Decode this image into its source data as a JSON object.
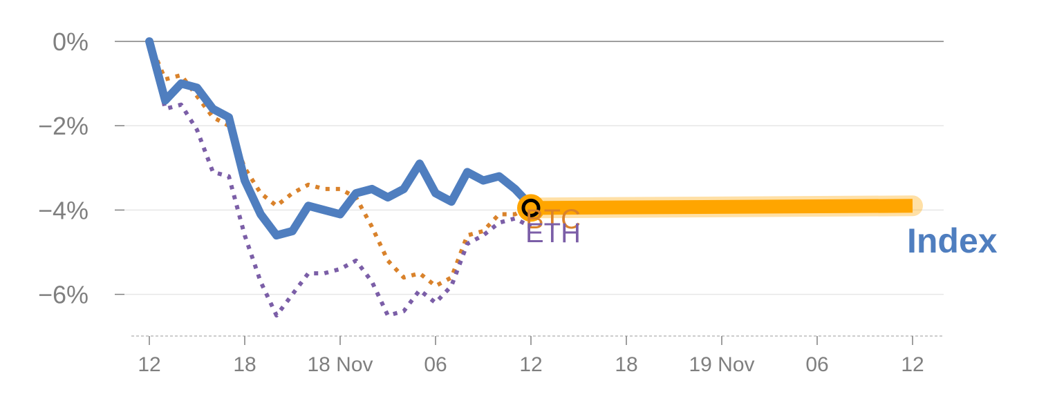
{
  "chart_data": {
    "type": "line",
    "y_unit": "%",
    "ylim": [
      -7,
      0
    ],
    "yticks": [
      0,
      -2,
      -4,
      -6
    ],
    "ytick_labels": [
      "0%",
      "−2%",
      "−4%",
      "−6%"
    ],
    "x_range": [
      0,
      48
    ],
    "xticks": [
      0,
      6,
      12,
      18,
      24,
      30,
      36,
      42,
      48
    ],
    "xtick_labels": [
      "12",
      "18",
      "18 Nov",
      "06",
      "12",
      "18",
      "19 Nov",
      "06",
      "12"
    ],
    "grid": true,
    "legend": "none (direct labels at line ends)",
    "series": [
      {
        "name": "Index",
        "style": "solid",
        "color": "#4f7ebf",
        "x": [
          0,
          1,
          2,
          3,
          4,
          5,
          6,
          7,
          8,
          9,
          10,
          11,
          12,
          13,
          14,
          15,
          16,
          17,
          18,
          19,
          20,
          21,
          22,
          23,
          24
        ],
        "values": [
          0,
          -1.4,
          -1.0,
          -1.1,
          -1.6,
          -1.8,
          -3.3,
          -4.1,
          -4.6,
          -4.5,
          -3.9,
          -4.0,
          -4.1,
          -3.6,
          -3.5,
          -3.7,
          -3.5,
          -2.9,
          -3.6,
          -3.8,
          -3.1,
          -3.3,
          -3.2,
          -3.5,
          -3.9
        ]
      },
      {
        "name": "BTC",
        "style": "dotted",
        "color": "#d9822b",
        "x": [
          0,
          1,
          2,
          3,
          4,
          5,
          6,
          7,
          8,
          9,
          10,
          11,
          12,
          13,
          14,
          15,
          16,
          17,
          18,
          19,
          20,
          21,
          22,
          23,
          24
        ],
        "values": [
          0,
          -0.9,
          -0.8,
          -1.3,
          -1.8,
          -2.0,
          -3.0,
          -3.6,
          -3.9,
          -3.6,
          -3.4,
          -3.5,
          -3.5,
          -3.7,
          -4.4,
          -5.2,
          -5.6,
          -5.5,
          -5.8,
          -5.6,
          -4.6,
          -4.5,
          -4.1,
          -4.1,
          -3.9
        ]
      },
      {
        "name": "ETH",
        "style": "dotted",
        "color": "#7b5ea7",
        "x": [
          0,
          1,
          2,
          3,
          4,
          5,
          6,
          7,
          8,
          9,
          10,
          11,
          12,
          13,
          14,
          15,
          16,
          17,
          18,
          19,
          20,
          21,
          22,
          23,
          24
        ],
        "values": [
          0,
          -1.6,
          -1.5,
          -2.1,
          -3.1,
          -3.2,
          -4.6,
          -5.7,
          -6.5,
          -6.0,
          -5.5,
          -5.5,
          -5.4,
          -5.2,
          -5.7,
          -6.5,
          -6.4,
          -5.9,
          -6.2,
          -5.8,
          -4.8,
          -4.6,
          -4.3,
          -4.2,
          -4.4
        ]
      }
    ],
    "projection": {
      "color": "#ffa500",
      "x": [
        24,
        48
      ],
      "values": [
        -3.95,
        -3.9
      ]
    },
    "end_marker": {
      "x": 24,
      "value": -3.95,
      "ring_color": "#ffa500",
      "dot_color": "#000000"
    }
  },
  "labels": {
    "btc": "BTC",
    "eth": "ETH",
    "index": "Index"
  },
  "colors": {
    "axis": "#7f7f7f",
    "grid": "#e6e6e6",
    "zero_line": "#7f7f7f"
  }
}
